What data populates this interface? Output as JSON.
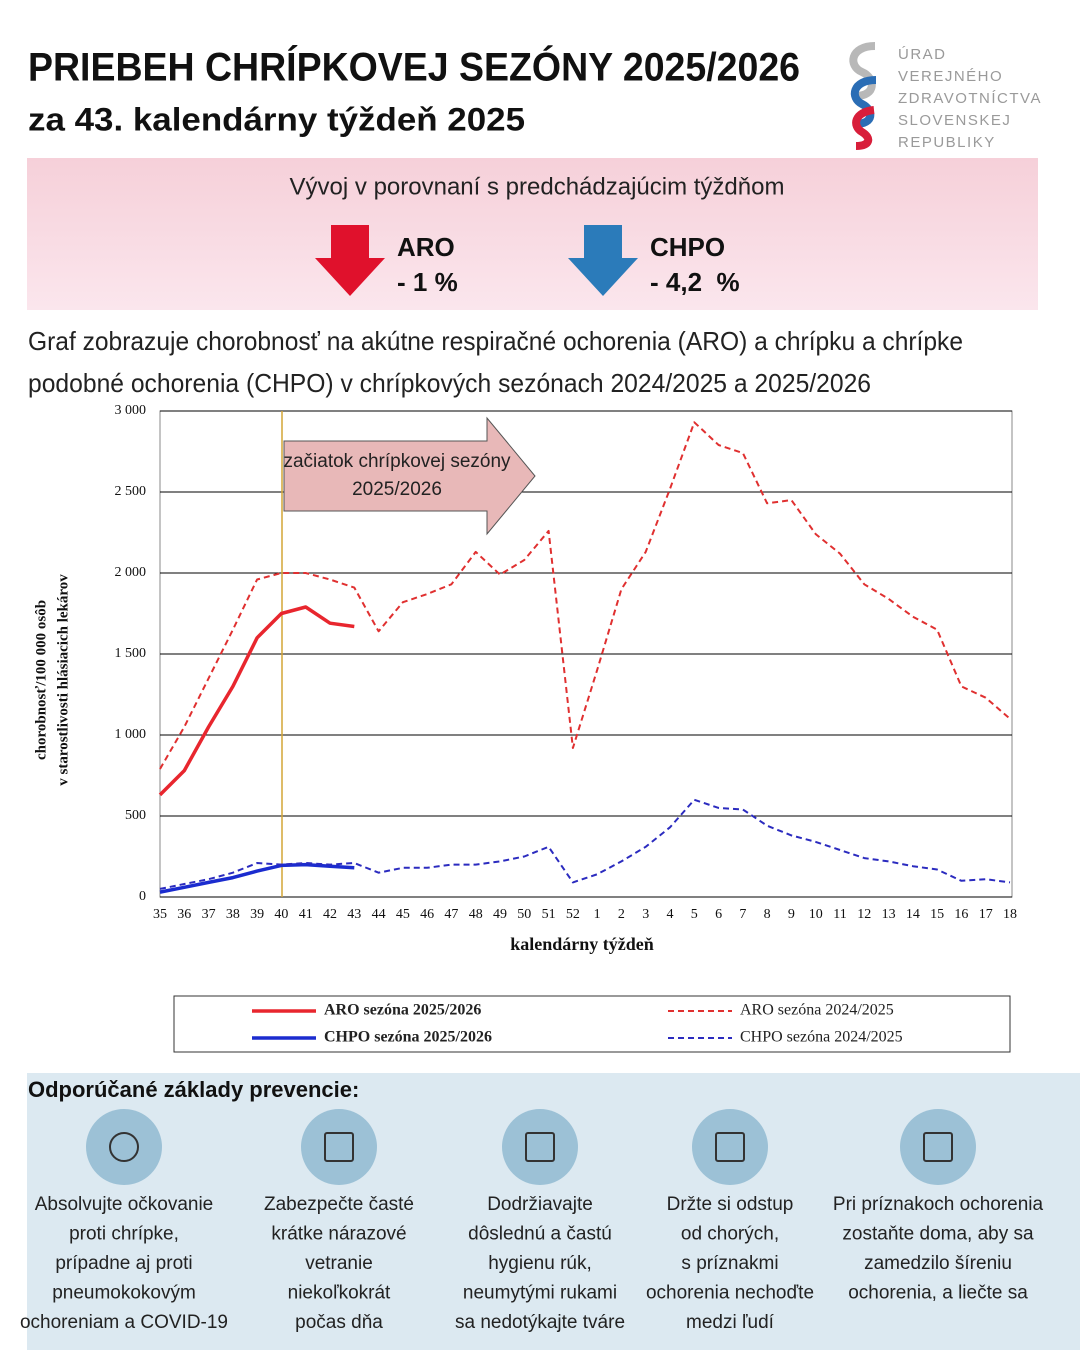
{
  "header": {
    "title": "PRIEBEH CHRÍPKOVEJ SEZÓNY 2025/2026",
    "subtitle": "za 43. kalendárny týždeň 2025",
    "logo": [
      "ÚRAD",
      "VEREJNÉHO",
      "ZDRAVOTNÍCTVA",
      "SLOVENSKEJ",
      "REPUBLIKY"
    ]
  },
  "banner": {
    "heading": "Vývoj v porovnaní s predchádzajúcim týždňom",
    "indicators": [
      {
        "name": "ARO",
        "change": "- 1 %",
        "color": "#e0112c"
      },
      {
        "name": "CHPO",
        "change": "- 4,2  %",
        "color": "#2b7bba"
      }
    ]
  },
  "description": [
    "Graf zobrazuje chorobnosť na akútne respiračné ochorenia (ARO) a chrípku a chrípke",
    "podobné ochorenia (CHPO) v chrípkových sezónach 2024/2025 a 2025/2026"
  ],
  "chart_data": {
    "type": "line",
    "annotation": [
      "začiatok chrípkovej sezóny",
      "2025/2026"
    ],
    "x_label": "kalendárny týždeň",
    "y_label": [
      "chorobnosť/100 000 osôb",
      "v starostlivosti hlásiacich lekárov"
    ],
    "categories": [
      "35",
      "36",
      "37",
      "38",
      "39",
      "40",
      "41",
      "42",
      "43",
      "44",
      "45",
      "46",
      "47",
      "48",
      "49",
      "50",
      "51",
      "52",
      "1",
      "2",
      "3",
      "4",
      "5",
      "6",
      "7",
      "8",
      "9",
      "10",
      "11",
      "12",
      "13",
      "14",
      "15",
      "16",
      "17",
      "18"
    ],
    "ylim": [
      0,
      3000
    ],
    "yticks": [
      0,
      500,
      {
        "value": 1000,
        "label": "1 000"
      },
      {
        "value": 1500,
        "label": "1 500"
      },
      {
        "value": 2000,
        "label": "2 000"
      },
      {
        "value": 2500,
        "label": "2 500"
      },
      {
        "value": 3000,
        "label": "3 000"
      }
    ],
    "grid": true,
    "series": [
      {
        "name": "ARO sezóna 2025/2026",
        "color": "#e8262e",
        "style": "solid",
        "values": [
          630,
          780,
          1050,
          1300,
          1600,
          1750,
          1790,
          1690,
          1670,
          null,
          null,
          null,
          null,
          null,
          null,
          null,
          null,
          null,
          null,
          null,
          null,
          null,
          null,
          null,
          null,
          null,
          null,
          null,
          null,
          null,
          null,
          null,
          null,
          null,
          null,
          null
        ]
      },
      {
        "name": "ARO sezóna 2024/2025",
        "color": "#e03030",
        "style": "dashed",
        "values": [
          790,
          1050,
          1350,
          1650,
          1960,
          2000,
          2000,
          1960,
          1910,
          1640,
          1820,
          1870,
          1930,
          2130,
          1990,
          2080,
          2260,
          920,
          1400,
          1900,
          2130,
          2520,
          2930,
          2790,
          2740,
          2430,
          2450,
          2240,
          2120,
          1930,
          1840,
          1730,
          1650,
          1300,
          1230,
          1100
        ]
      },
      {
        "name": "CHPO sezóna 2025/2026",
        "color": "#1b2ccf",
        "style": "solid",
        "values": [
          30,
          60,
          90,
          120,
          160,
          195,
          200,
          190,
          180,
          null,
          null,
          null,
          null,
          null,
          null,
          null,
          null,
          null,
          null,
          null,
          null,
          null,
          null,
          null,
          null,
          null,
          null,
          null,
          null,
          null,
          null,
          null,
          null,
          null,
          null,
          null
        ]
      },
      {
        "name": "CHPO sezóna 2024/2025",
        "color": "#2b2bbf",
        "style": "dashed",
        "values": [
          50,
          80,
          110,
          150,
          210,
          200,
          210,
          200,
          210,
          150,
          180,
          180,
          200,
          200,
          220,
          250,
          310,
          90,
          140,
          220,
          310,
          430,
          600,
          550,
          540,
          440,
          380,
          340,
          290,
          240,
          220,
          190,
          170,
          100,
          110,
          90
        ]
      }
    ]
  },
  "prevention": {
    "title": "Odporúčané základy prevencie:",
    "items": [
      [
        "Absolvujte očkovanie",
        "proti chrípke,",
        "prípadne aj proti",
        "pneumokokovým",
        "ochoreniam a COVID-19"
      ],
      [
        "Zabezpečte časté",
        "krátke nárazové",
        "vetranie",
        "niekoľkokrát",
        "počas dňa"
      ],
      [
        "Dodržiavajte",
        "dôslednú a častú",
        "hygienu rúk,",
        "neumytými rukami",
        "sa nedotýkajte tváre"
      ],
      [
        "Držte si odstup",
        "od chorých,",
        "s príznakmi",
        "ochorenia nechoďte",
        "medzi ľudí"
      ],
      [
        "Pri príznakoch ochorenia",
        "zostaňte doma, aby sa",
        "zamedzilo šíreniu",
        "ochorenia, a liečte sa"
      ]
    ]
  }
}
